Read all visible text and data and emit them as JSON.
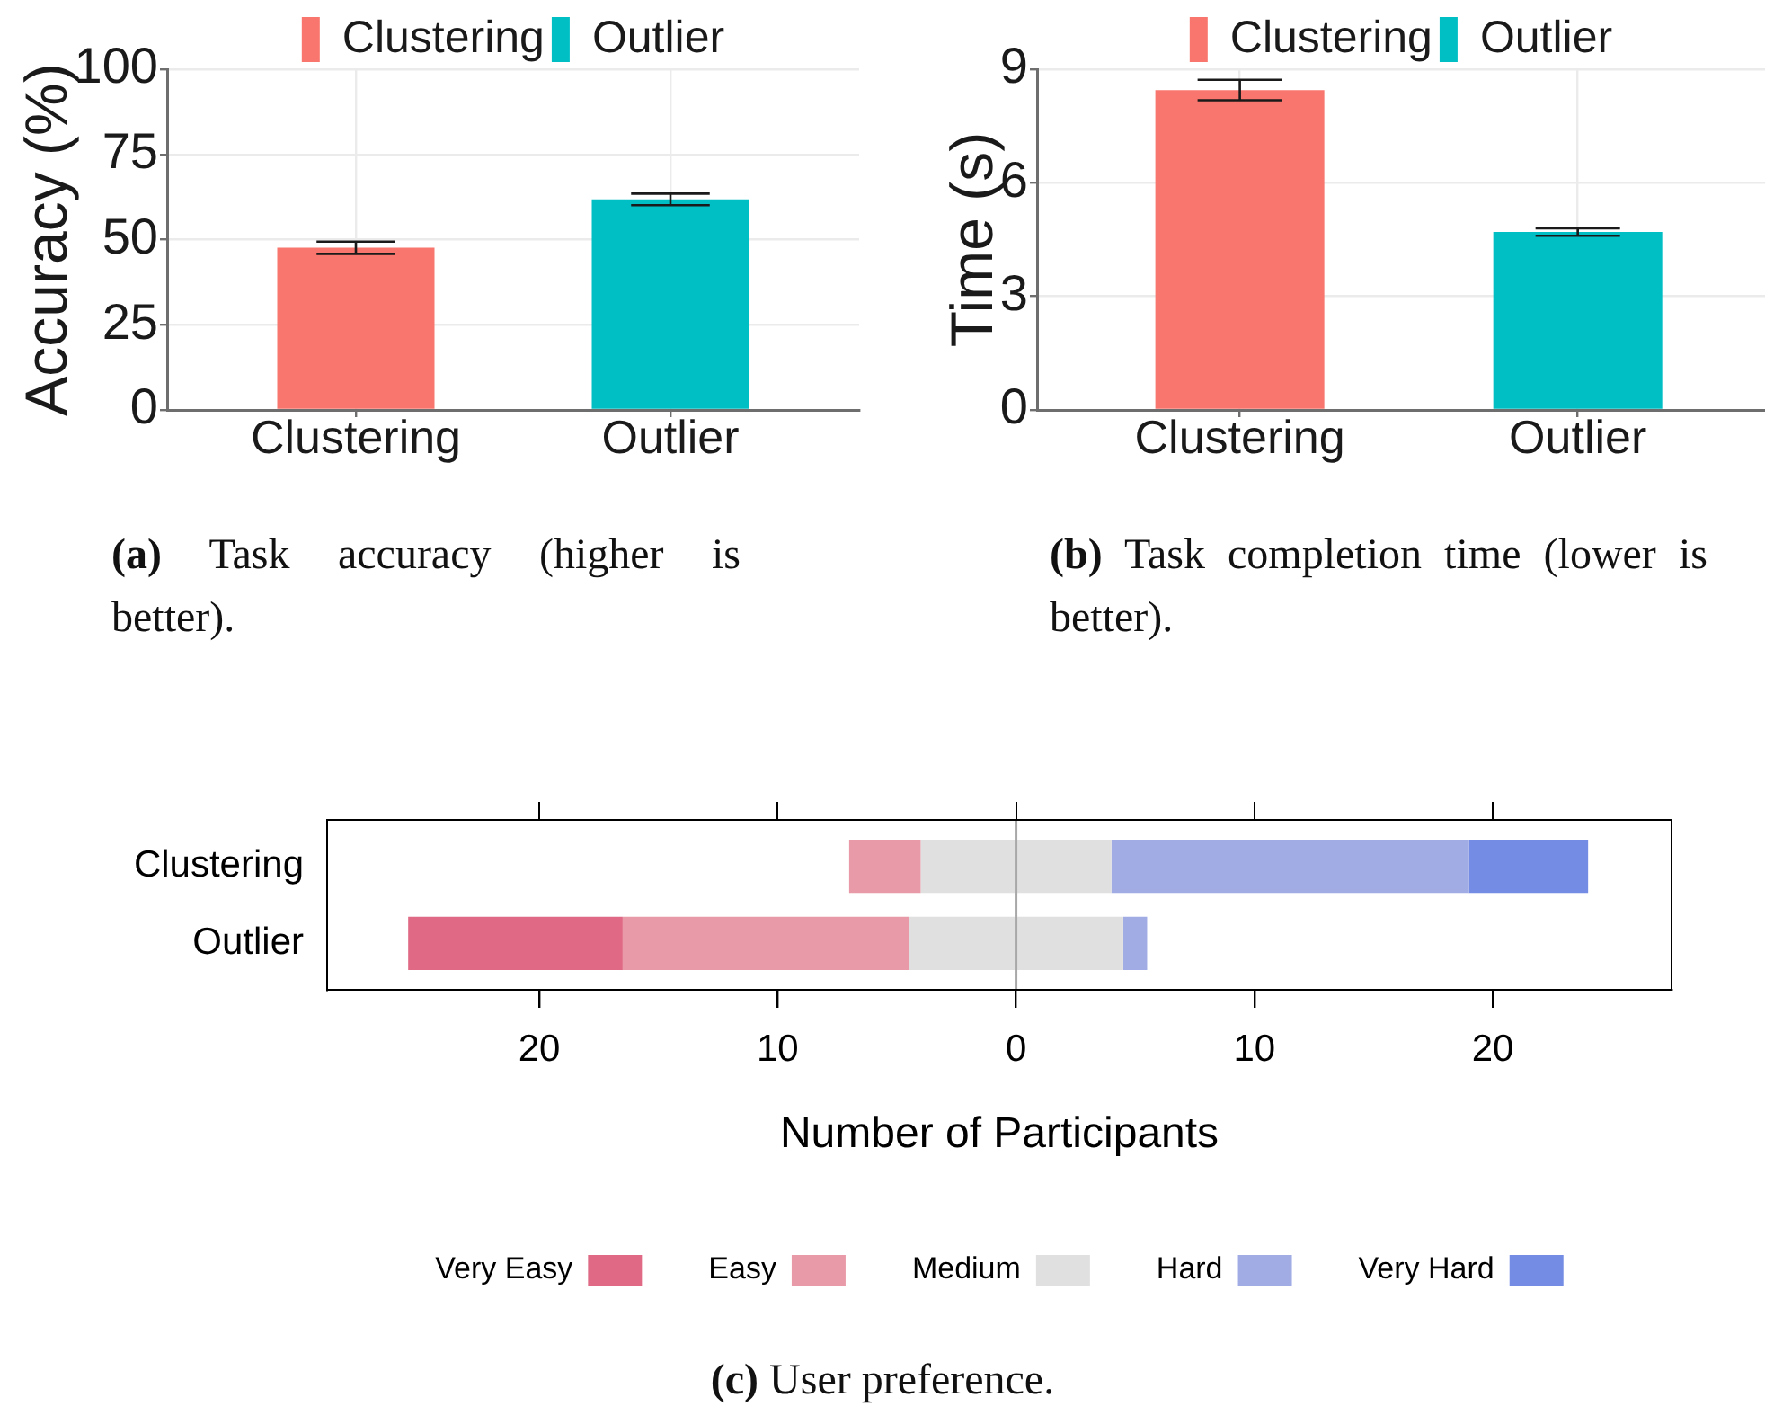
{
  "chart_data": [
    {
      "type": "bar",
      "categories": [
        "Clustering",
        "Outlier"
      ],
      "series": [
        {
          "name": "Clustering",
          "color": "#f8766d",
          "values": [
            47.6,
            null
          ],
          "errors": [
            1.8,
            null
          ]
        },
        {
          "name": "Outlier",
          "color": "#00bfc4",
          "values": [
            null,
            61.8
          ],
          "errors": [
            null,
            1.7
          ]
        }
      ],
      "ylabel": "Accuracy (%)",
      "ylim": [
        0,
        100
      ],
      "yticks": [
        0,
        25,
        50,
        75,
        100
      ],
      "grid": true,
      "legend": "top",
      "annotations": [
        "(a) Task accuracy (higher is better)."
      ]
    },
    {
      "type": "bar",
      "categories": [
        "Clustering",
        "Outlier"
      ],
      "series": [
        {
          "name": "Clustering",
          "color": "#f8766d",
          "values": [
            8.45,
            null
          ],
          "errors": [
            0.27,
            null
          ]
        },
        {
          "name": "Outlier",
          "color": "#00bfc4",
          "values": [
            null,
            4.7
          ],
          "errors": [
            null,
            0.1
          ]
        }
      ],
      "ylabel": "Time (s)",
      "ylim": [
        0,
        9
      ],
      "yticks": [
        0,
        3,
        6,
        9
      ],
      "grid": true,
      "legend": "top",
      "annotations": [
        "(b) Task completion time (lower is better)."
      ]
    },
    {
      "type": "bar",
      "orientation": "horizontal",
      "categories": [
        "Clustering",
        "Outlier"
      ],
      "series": [
        {
          "name": "Very Easy",
          "color": "#e06a86",
          "values": [
            null,
            9
          ],
          "base": [
            null,
            -25.5
          ]
        },
        {
          "name": "Easy",
          "color": "#e89aa8",
          "values": [
            3,
            12
          ],
          "base": [
            -7,
            -16.5
          ]
        },
        {
          "name": "Medium",
          "color": "#e0e0e0",
          "values": [
            8,
            9
          ],
          "base": [
            -4,
            -4.5
          ]
        },
        {
          "name": "Hard",
          "color": "#a1ace5",
          "values": [
            15,
            1
          ],
          "base": [
            4,
            4.5
          ]
        },
        {
          "name": "Very Hard",
          "color": "#758ce4",
          "values": [
            5,
            null
          ],
          "base": [
            19,
            null
          ]
        }
      ],
      "xlabel": "Number of Participants",
      "xlim": [
        -28.9,
        27.5
      ],
      "xticks": [
        {
          "value": -20,
          "label": "20"
        },
        {
          "value": -10,
          "label": "10"
        },
        0,
        10,
        20
      ],
      "ref_lines": [
        {
          "axis": "x",
          "value": 0,
          "color": "#a8a8a8"
        }
      ],
      "legend": "bottom",
      "annotations": [
        "(c) User preference."
      ]
    }
  ]
}
